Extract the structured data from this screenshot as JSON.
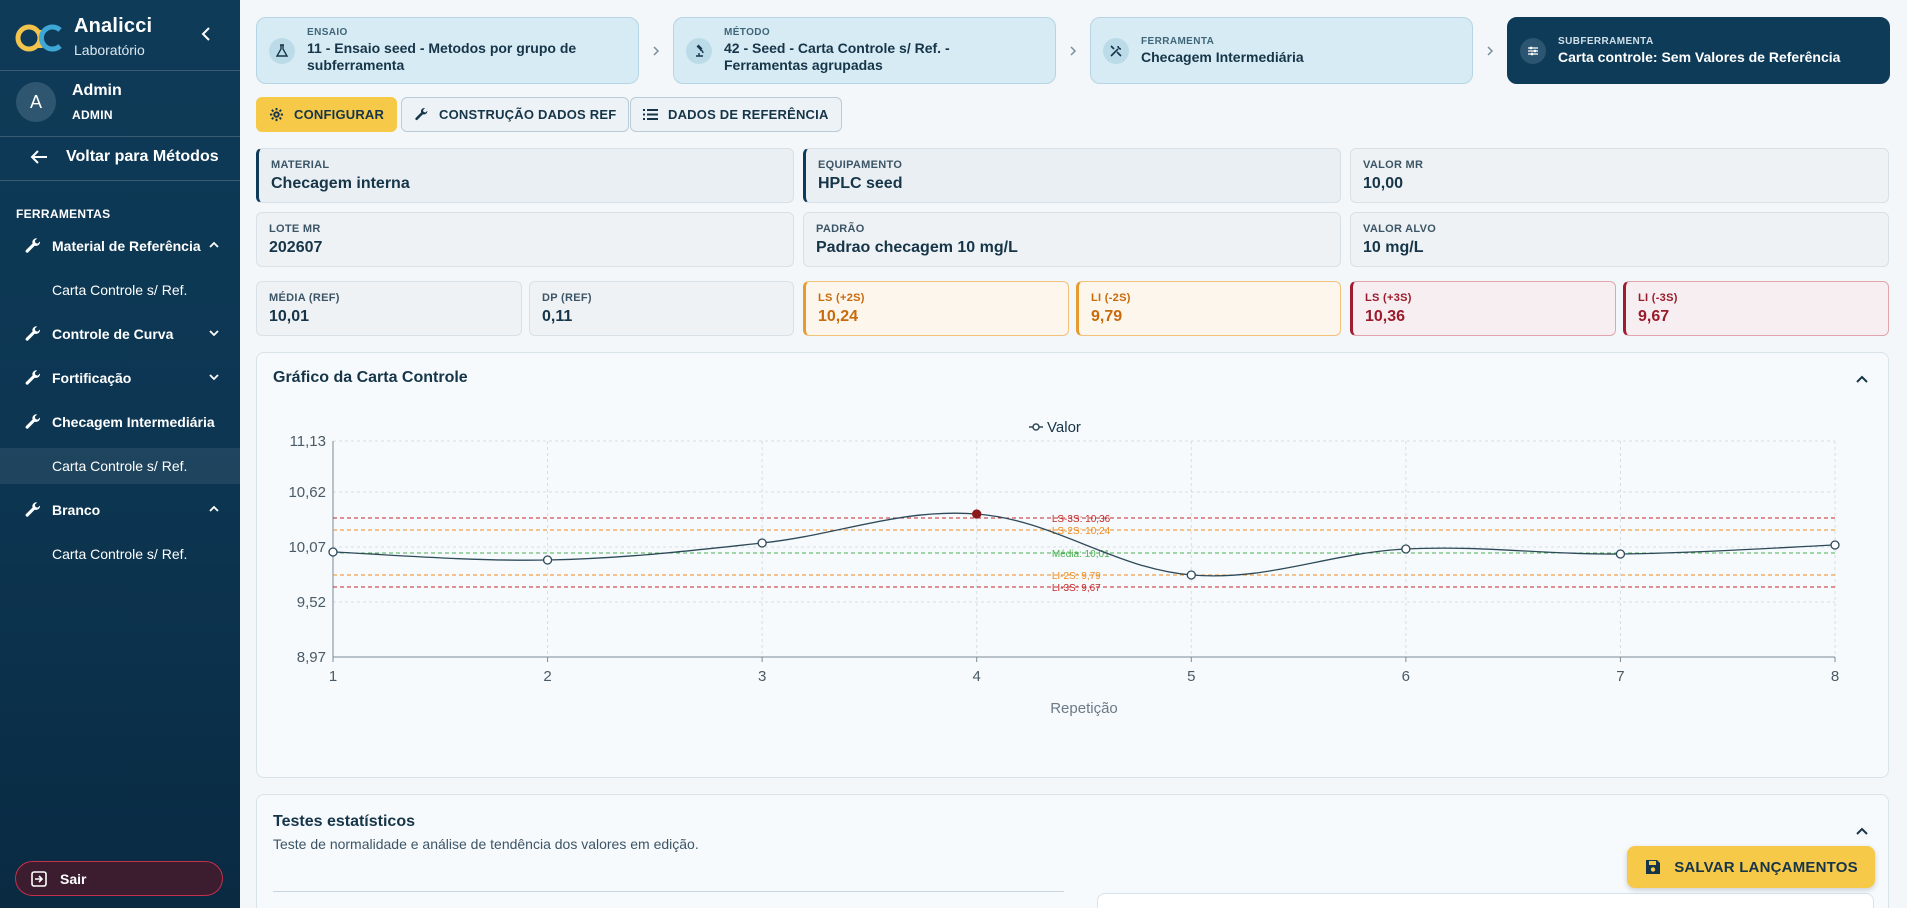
{
  "app": {
    "name": "Analicci",
    "subtitle": "Laboratório"
  },
  "user": {
    "initial": "A",
    "name": "Admin",
    "role": "ADMIN"
  },
  "sidebar": {
    "back_label": "Voltar para Métodos",
    "section_label": "FERRAMENTAS",
    "groups": [
      {
        "label": "Material de Referência",
        "expanded": true,
        "items": [
          "Carta Controle s/ Ref."
        ]
      },
      {
        "label": "Controle de Curva",
        "expanded": false,
        "items": []
      },
      {
        "label": "Fortificação",
        "expanded": false,
        "items": []
      },
      {
        "label": "Checagem Intermediária",
        "expanded": true,
        "items": [
          "Carta Controle s/ Ref."
        ]
      },
      {
        "label": "Branco",
        "expanded": true,
        "items": [
          "Carta Controle s/ Ref."
        ]
      }
    ],
    "logout_label": "Sair"
  },
  "breadcrumbs": [
    {
      "label": "ENSAIO",
      "value": "11 - Ensaio seed - Metodos por grupo de subferramenta",
      "icon": "flask-icon"
    },
    {
      "label": "MÉTODO",
      "value": "42 - Seed - Carta Controle s/ Ref. - Ferramentas agrupadas",
      "icon": "microscope-icon"
    },
    {
      "label": "FERRAMENTA",
      "value": "Checagem Intermediária",
      "icon": "tools-icon"
    },
    {
      "label": "SUBFERRAMENTA",
      "value": "Carta controle: Sem Valores de Referência",
      "icon": "sliders-icon"
    }
  ],
  "toolbar": {
    "configure": "CONFIGURAR",
    "build_ref": "CONSTRUÇÃO DADOS REF",
    "ref_data": "DADOS DE REFERÊNCIA"
  },
  "info": {
    "material": {
      "label": "MATERIAL",
      "value": "Checagem interna"
    },
    "equipment": {
      "label": "EQUIPAMENTO",
      "value": "HPLC seed"
    },
    "mr_value": {
      "label": "VALOR MR",
      "value": "10,00"
    },
    "mr_lot": {
      "label": "LOTE MR",
      "value": "202607"
    },
    "standard": {
      "label": "PADRÃO",
      "value": "Padrao checagem 10 mg/L"
    },
    "target": {
      "label": "VALOR ALVO",
      "value": "10 mg/L"
    }
  },
  "limits": {
    "mean": {
      "label": "MÉDIA (REF)",
      "value": "10,01"
    },
    "sd": {
      "label": "DP (REF)",
      "value": "0,11"
    },
    "ls2": {
      "label": "LS (+2S)",
      "value": "10,24"
    },
    "li2": {
      "label": "LI (-2S)",
      "value": "9,79"
    },
    "ls3": {
      "label": "LS (+3S)",
      "value": "10,36"
    },
    "li3": {
      "label": "LI (-3S)",
      "value": "9,67"
    }
  },
  "chart_panel": {
    "title": "Gráfico da Carta Controle"
  },
  "stats_panel": {
    "title": "Testes estatísticos",
    "description": "Teste de normalidade e análise de tendência dos valores em edição."
  },
  "save_label": "SALVAR LANÇAMENTOS",
  "colors": {
    "navy": "#0e3b58",
    "accent_yellow": "#f7c948",
    "warning": "#e79a2e",
    "danger": "#a01c2f",
    "mean_line": "#4caf50",
    "line": "#2e4a5a",
    "highlight_point": "#8b1a1a"
  },
  "chart_data": {
    "type": "line",
    "xlabel": "Repetição",
    "ylabel": "",
    "x": [
      1,
      2,
      3,
      4,
      5,
      6,
      7,
      8
    ],
    "series": [
      {
        "name": "Valor",
        "values": [
          10.02,
          9.94,
          10.11,
          10.4,
          9.79,
          10.05,
          10.0,
          10.09
        ]
      }
    ],
    "ylim": [
      8.97,
      11.13
    ],
    "xlim": [
      1,
      8
    ],
    "yticks": [
      "11,13",
      "10,62",
      "10,07",
      "9,52",
      "8,97"
    ],
    "ytick_values": [
      11.13,
      10.62,
      10.07,
      9.52,
      8.97
    ],
    "grid": true,
    "legend": "top-center",
    "highlighted_point_index": 3,
    "reference_lines": [
      {
        "label": "LS-3S: 10,36",
        "value": 10.36,
        "color": "#c62828"
      },
      {
        "label": "LS-2S: 10,24",
        "value": 10.24,
        "color": "#ef8c1f"
      },
      {
        "label": "Média: 10,01",
        "value": 10.01,
        "color": "#4caf50"
      },
      {
        "label": "LI-2S: 9,79",
        "value": 9.79,
        "color": "#ef8c1f"
      },
      {
        "label": "LI-3S: 9,67",
        "value": 9.67,
        "color": "#c62828"
      }
    ]
  }
}
